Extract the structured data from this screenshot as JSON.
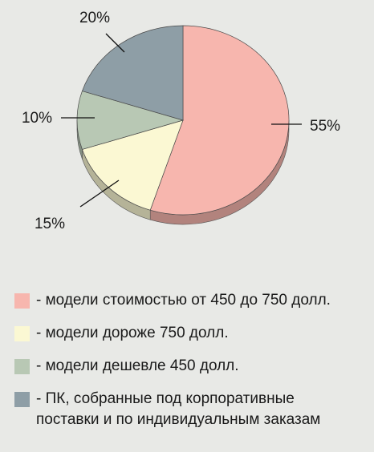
{
  "chart_data": {
    "type": "pie",
    "style": "3d",
    "slices": [
      {
        "label": "- модели стоимостью от 450 до 750 долл.",
        "value": 55,
        "value_label": "55%",
        "color": "#f7b6ae"
      },
      {
        "label": "- модели дороже 750 долл.",
        "value": 15,
        "value_label": "15%",
        "color": "#fbf8d3"
      },
      {
        "label": "- модели дешевле 450 долл.",
        "value": 10,
        "value_label": "10%",
        "color": "#b8c8b4"
      },
      {
        "label": "- ПК, собранные под корпоративные\nпоставки и по индивидуальным заказам",
        "value": 20,
        "value_label": "20%",
        "color": "#8e9ea6"
      }
    ],
    "legend_position": "bottom"
  }
}
